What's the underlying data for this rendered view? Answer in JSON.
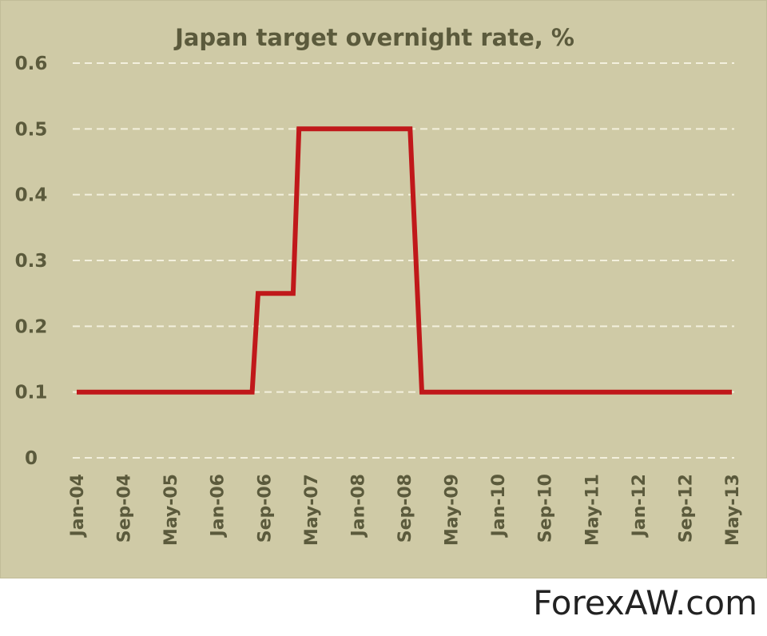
{
  "chart_data": {
    "type": "line",
    "title": "Japan target overnight rate, %",
    "xlabel": "",
    "ylabel": "",
    "x_tick_labels": [
      "Jan-04",
      "Sep-04",
      "May-05",
      "Jan-06",
      "Sep-06",
      "May-07",
      "Jan-08",
      "Sep-08",
      "May-09",
      "Jan-10",
      "Sep-10",
      "May-11",
      "Jan-12",
      "Sep-12",
      "May-13"
    ],
    "y_tick_labels": [
      "0",
      "0.1",
      "0.2",
      "0.3",
      "0.4",
      "0.5",
      "0.6"
    ],
    "ylim": [
      0,
      0.6
    ],
    "xlim": [
      "Jan-04",
      "May-13"
    ],
    "grid": true,
    "legend": "none",
    "series": [
      {
        "x": [
          "Jan-04",
          "Jul-06",
          "Aug-06",
          "Feb-07",
          "Mar-07",
          "Oct-08",
          "Dec-08",
          "May-13"
        ],
        "y": [
          0.1,
          0.1,
          0.25,
          0.25,
          0.5,
          0.5,
          0.1,
          0.1
        ]
      }
    ]
  },
  "colors": {
    "line": "#c0181a",
    "background": "#cfcaa6",
    "text": "#5b5a3c",
    "grid": "#f3f0dd"
  },
  "watermark": "ForexAW.com"
}
